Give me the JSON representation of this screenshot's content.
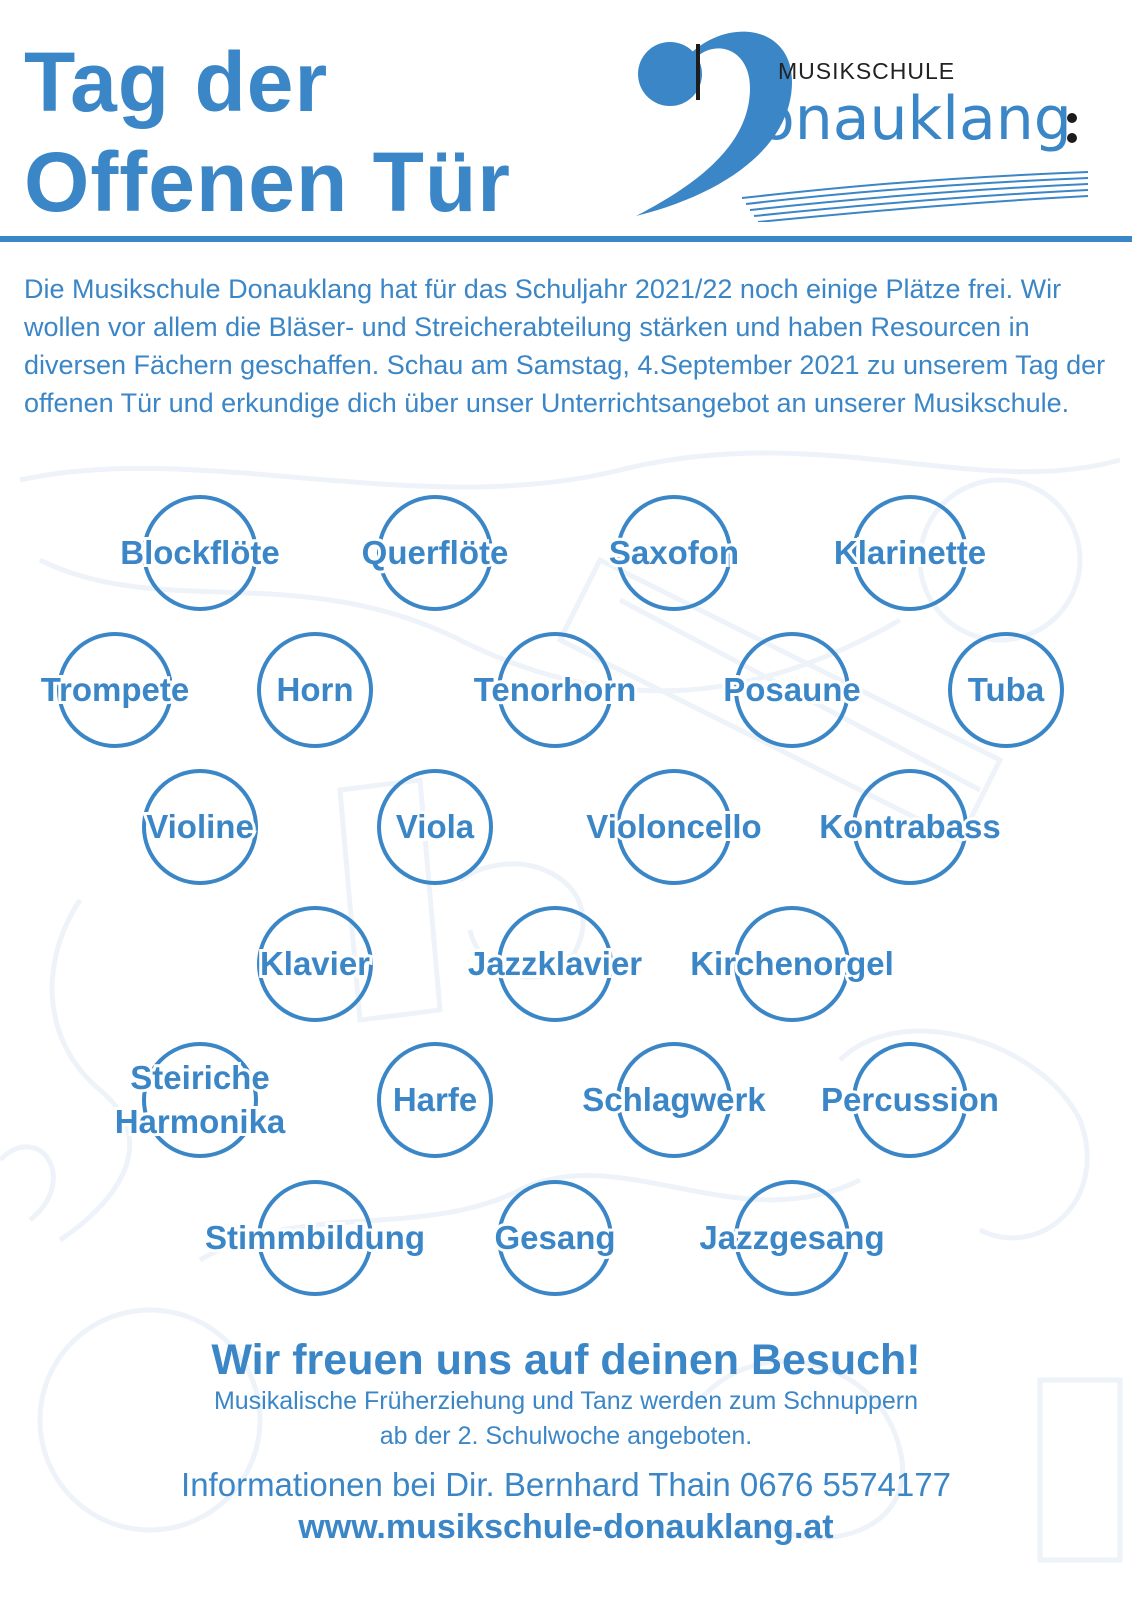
{
  "header": {
    "title_line1": "Tag der",
    "title_line2": "Offenen Tür"
  },
  "logo": {
    "top_text": "MUSIKSCHULE",
    "main_text": "onauklang"
  },
  "intro": "Die Musikschule Donauklang hat für das Schuljahr 2021/22 noch einige Plätze frei. Wir wollen vor allem die Bläser- und Streicherabteilung stärken und haben Resourcen in diversen Fächern geschaffen. Schau am Samstag, 4.September 2021 zu unserem Tag der offenen Tür und erkundige dich über unser Unterrichtsangebot an unserer Musikschule.",
  "instruments": [
    [
      "Blockflöte"
    ],
    [
      "Querflöte"
    ],
    [
      "Saxofon"
    ],
    [
      "Klarinette"
    ],
    [
      "Trompete"
    ],
    [
      "Horn"
    ],
    [
      "Tenorhorn"
    ],
    [
      "Posaune"
    ],
    [
      "Tuba"
    ],
    [
      "Violine"
    ],
    [
      "Viola"
    ],
    [
      "Violoncello"
    ],
    [
      "Kontrabass"
    ],
    [
      "Klavier"
    ],
    [
      "Jazzklavier"
    ],
    [
      "Kirchenorgel"
    ],
    [
      "Steiriche",
      "Harmonika"
    ],
    [
      "Harfe"
    ],
    [
      "Schlagwerk"
    ],
    [
      "Percussion"
    ],
    [
      "Stimmbildung"
    ],
    [
      "Gesang"
    ],
    [
      "Jazzgesang"
    ]
  ],
  "closing": {
    "headline": "Wir freuen uns auf deinen Besuch!",
    "note_line1": "Musikalische Früherziehung und Tanz werden zum Schnuppern",
    "note_line2": "ab der 2. Schulwoche angeboten.",
    "info": "Informationen bei Dir. Bernhard Thain 0676 5574177",
    "website": "www.musikschule-donauklang.at"
  },
  "colors": {
    "accent": "#3b86c6",
    "background": "#ffffff"
  }
}
